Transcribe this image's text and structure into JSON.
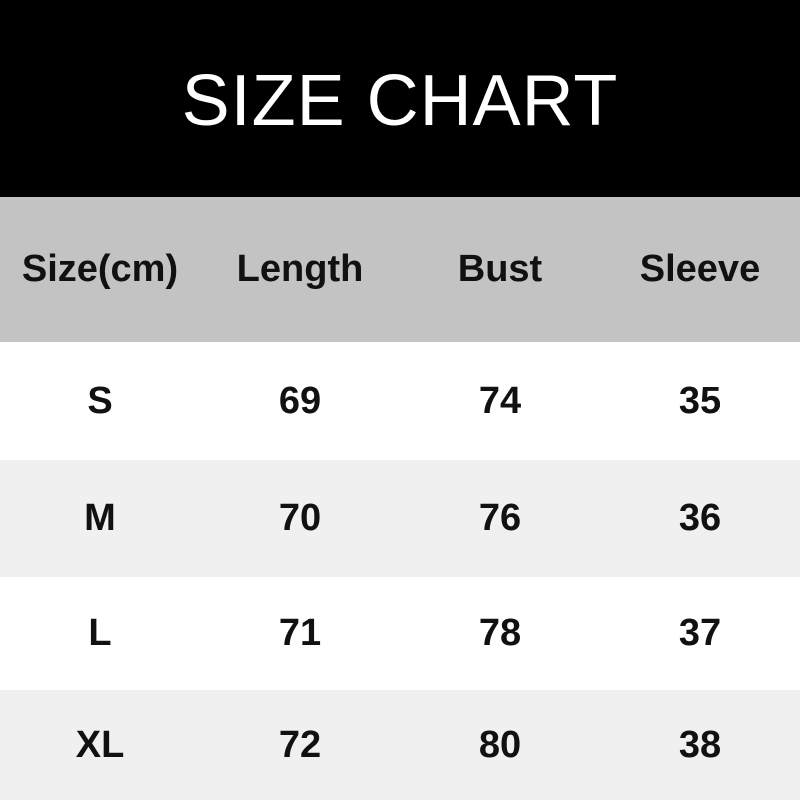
{
  "title": "SIZE CHART",
  "table": {
    "headers": [
      "Size(cm)",
      "Length",
      "Bust",
      "Sleeve"
    ],
    "rows": [
      [
        "S",
        "69",
        "74",
        "35"
      ],
      [
        "M",
        "70",
        "76",
        "36"
      ],
      [
        "L",
        "71",
        "78",
        "37"
      ],
      [
        "XL",
        "72",
        "80",
        "38"
      ]
    ]
  },
  "colors": {
    "title_bg": "#000000",
    "header_bg": "#c3c3c3",
    "stripe_bg": "#f0f0f0"
  }
}
